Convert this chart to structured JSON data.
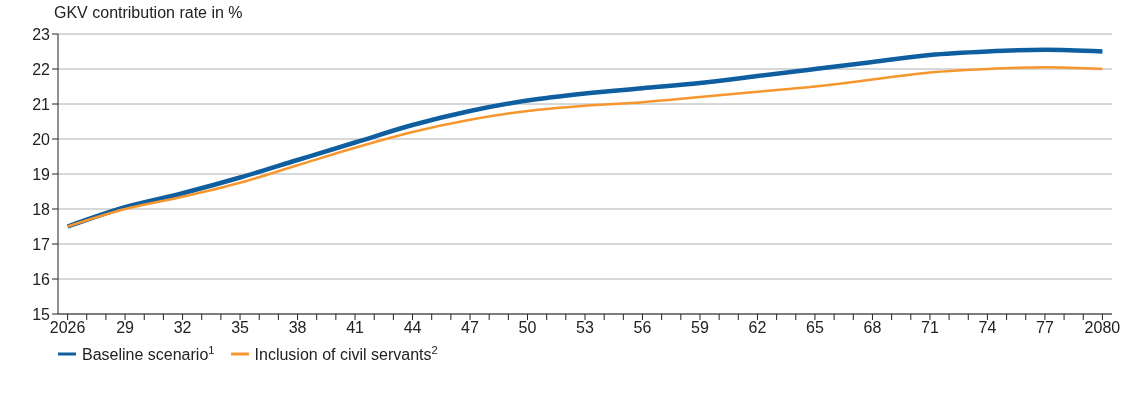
{
  "chart_data": {
    "type": "line",
    "ylabel": "GKV contribution rate in %",
    "xlim": [
      2025.5,
      2080.5
    ],
    "xticks": [
      {
        "value": 2026,
        "label": "2026"
      },
      {
        "value": 2027,
        "label": null
      },
      {
        "value": 2028,
        "label": null
      },
      {
        "value": 2029,
        "label": "29"
      },
      {
        "value": 2030,
        "label": null
      },
      {
        "value": 2031,
        "label": null
      },
      {
        "value": 2032,
        "label": "32"
      },
      {
        "value": 2033,
        "label": null
      },
      {
        "value": 2034,
        "label": null
      },
      {
        "value": 2035,
        "label": "35"
      },
      {
        "value": 2036,
        "label": null
      },
      {
        "value": 2037,
        "label": null
      },
      {
        "value": 2038,
        "label": "38"
      },
      {
        "value": 2039,
        "label": null
      },
      {
        "value": 2040,
        "label": null
      },
      {
        "value": 2041,
        "label": "41"
      },
      {
        "value": 2042,
        "label": null
      },
      {
        "value": 2043,
        "label": null
      },
      {
        "value": 2044,
        "label": "44"
      },
      {
        "value": 2045,
        "label": null
      },
      {
        "value": 2046,
        "label": null
      },
      {
        "value": 2047,
        "label": "47"
      },
      {
        "value": 2048,
        "label": null
      },
      {
        "value": 2049,
        "label": null
      },
      {
        "value": 2050,
        "label": "50"
      },
      {
        "value": 2051,
        "label": null
      },
      {
        "value": 2052,
        "label": null
      },
      {
        "value": 2053,
        "label": "53"
      },
      {
        "value": 2054,
        "label": null
      },
      {
        "value": 2055,
        "label": null
      },
      {
        "value": 2056,
        "label": "56"
      },
      {
        "value": 2057,
        "label": null
      },
      {
        "value": 2058,
        "label": null
      },
      {
        "value": 2059,
        "label": "59"
      },
      {
        "value": 2060,
        "label": null
      },
      {
        "value": 2061,
        "label": null
      },
      {
        "value": 2062,
        "label": "62"
      },
      {
        "value": 2063,
        "label": null
      },
      {
        "value": 2064,
        "label": null
      },
      {
        "value": 2065,
        "label": "65"
      },
      {
        "value": 2066,
        "label": null
      },
      {
        "value": 2067,
        "label": null
      },
      {
        "value": 2068,
        "label": "68"
      },
      {
        "value": 2069,
        "label": null
      },
      {
        "value": 2070,
        "label": null
      },
      {
        "value": 2071,
        "label": "71"
      },
      {
        "value": 2072,
        "label": null
      },
      {
        "value": 2073,
        "label": null
      },
      {
        "value": 2074,
        "label": "74"
      },
      {
        "value": 2075,
        "label": null
      },
      {
        "value": 2076,
        "label": null
      },
      {
        "value": 2077,
        "label": "77"
      },
      {
        "value": 2078,
        "label": null
      },
      {
        "value": 2079,
        "label": null
      },
      {
        "value": 2080,
        "label": "2080"
      }
    ],
    "ylim": [
      15,
      23
    ],
    "yticks": [
      15,
      16,
      17,
      18,
      19,
      20,
      21,
      22,
      23
    ],
    "x": [
      2026,
      2029,
      2032,
      2035,
      2038,
      2041,
      2044,
      2047,
      2050,
      2053,
      2056,
      2059,
      2062,
      2065,
      2068,
      2071,
      2074,
      2077,
      2080
    ],
    "series": [
      {
        "name": "Baseline scenario$^{1}$",
        "color": "#0f5fa0",
        "values": [
          17.5,
          18.05,
          18.45,
          18.9,
          19.4,
          19.9,
          20.4,
          20.8,
          21.1,
          21.3,
          21.45,
          21.6,
          21.8,
          22.0,
          22.2,
          22.4,
          22.5,
          22.55,
          22.5
        ]
      },
      {
        "name": "Inclusion of civil servants$^{2}$",
        "color": "#f8962e",
        "values": [
          17.5,
          18.0,
          18.35,
          18.75,
          19.25,
          19.75,
          20.2,
          20.55,
          20.8,
          20.95,
          21.05,
          21.2,
          21.35,
          21.5,
          21.7,
          21.9,
          22.0,
          22.05,
          22.0
        ]
      }
    ],
    "grid": "y",
    "legend": "bottom left",
    "marker": "none",
    "line_style": "solid"
  }
}
